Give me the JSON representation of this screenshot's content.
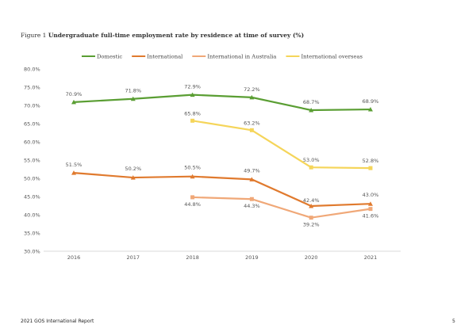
{
  "figure": {
    "label": "Figure 1",
    "title": "Undergraduate full-time employment rate by residence at time of survey (%)"
  },
  "chart_data": {
    "type": "line",
    "title": "Undergraduate full-time employment rate by residence at time of survey (%)",
    "categories": [
      "2016",
      "2017",
      "2018",
      "2019",
      "2020",
      "2021"
    ],
    "ylim": [
      30,
      80
    ],
    "yticks": [
      "30.0%",
      "35.0%",
      "40.0%",
      "45.0%",
      "50.0%",
      "55.0%",
      "60.0%",
      "65.0%",
      "70.0%",
      "75.0%",
      "80.0%"
    ],
    "legend_position": "top",
    "grid": false,
    "series": [
      {
        "name": "Domestic",
        "color": "#5a9e33",
        "marker": "triangle",
        "values": [
          70.9,
          71.8,
          72.9,
          72.2,
          68.7,
          68.9
        ],
        "labels": [
          "70.9%",
          "71.8%",
          "72.9%",
          "72.2%",
          "68.7%",
          "68.9%"
        ]
      },
      {
        "name": "International",
        "color": "#e07a2e",
        "marker": "triangle",
        "values": [
          51.5,
          50.2,
          50.5,
          49.7,
          42.4,
          43.0
        ],
        "labels": [
          "51.5%",
          "50.2%",
          "50.5%",
          "49.7%",
          "42.4%",
          "43.0%"
        ]
      },
      {
        "name": "International in Australia",
        "color": "#f0a878",
        "marker": "square",
        "values": [
          null,
          null,
          44.8,
          44.3,
          39.2,
          41.6
        ],
        "labels": [
          null,
          null,
          "44.8%",
          "44.3%",
          "39.2%",
          "41.6%"
        ]
      },
      {
        "name": "International overseas",
        "color": "#f5d55a",
        "marker": "square",
        "values": [
          null,
          null,
          65.8,
          63.2,
          53.0,
          52.8
        ],
        "labels": [
          null,
          null,
          "65.8%",
          "63.2%",
          "53.0%",
          "52.8%"
        ]
      }
    ]
  },
  "footer": {
    "left": "2021 GOS  International Report",
    "page": "5"
  }
}
